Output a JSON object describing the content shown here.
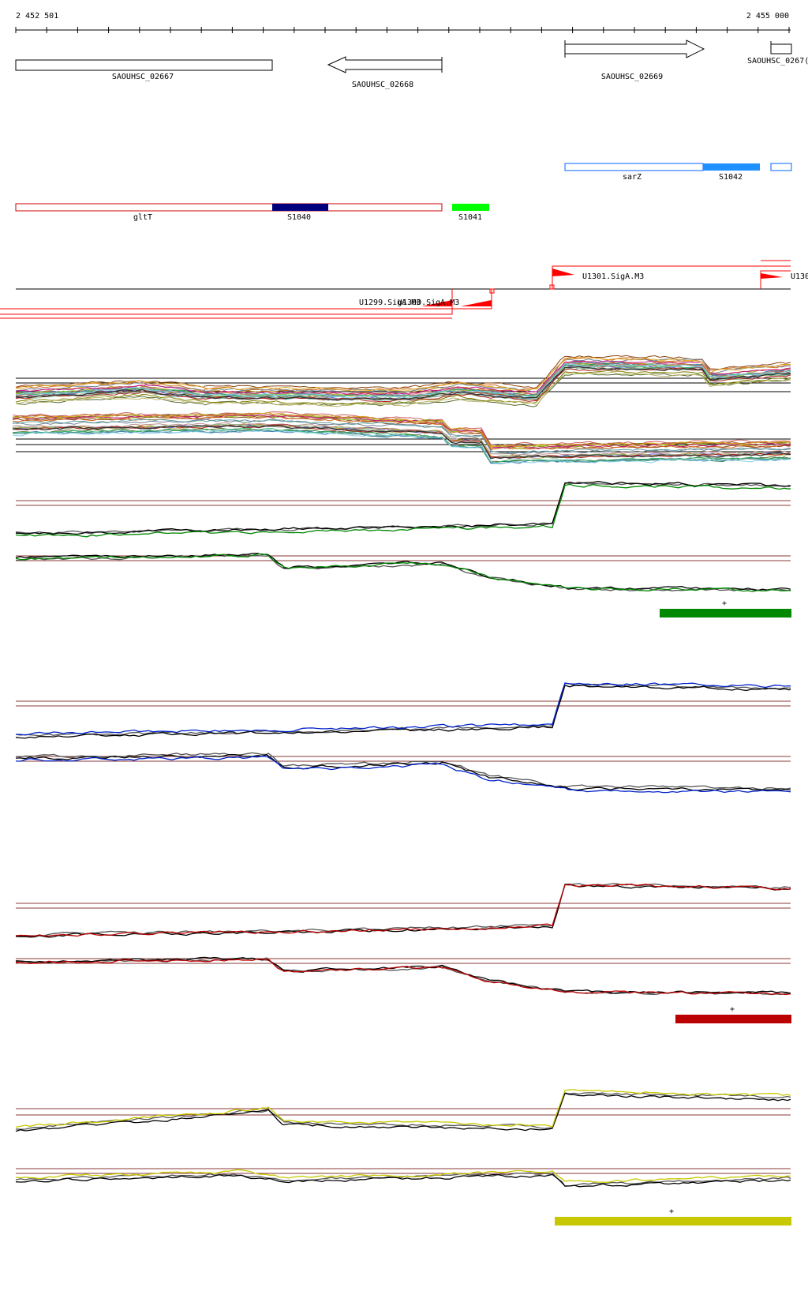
{
  "axis": {
    "start_label": "2 452 501",
    "end_label": "2 455 000",
    "start": 2452501,
    "end": 2455000
  },
  "genes": [
    {
      "id": "SAOUHSC_02667",
      "label": "SAOUHSC_02667",
      "start": 2452501,
      "end": 2453327,
      "strand": "none"
    },
    {
      "id": "SAOUHSC_02668",
      "label": "SAOUHSC_02668",
      "start": 2453559,
      "end": 2453875,
      "strand": "-"
    },
    {
      "id": "SAOUHSC_02669",
      "label": "SAOUHSC_02669",
      "start": 2454276,
      "end": 2454725,
      "strand": "+"
    },
    {
      "id": "SAOUHSC_02670",
      "label": "SAOUHSC_0267(",
      "start": 2454933,
      "end": 2455000,
      "strand": "none"
    }
  ],
  "annotations": [
    {
      "label": "sarZ",
      "kind": "outline",
      "color": "#0066ff",
      "start": 2454276,
      "end": 2454725
    },
    {
      "label": "S1042",
      "kind": "filled",
      "color": "#1e90ff",
      "start": 2454725,
      "end": 2454906
    },
    {
      "label": "",
      "kind": "outline",
      "color": "#0066ff",
      "start": 2454938,
      "end": 2455000
    },
    {
      "label": "gltT",
      "kind": "outline",
      "color": "#cc0000",
      "start": 2452501,
      "end": 2453875
    },
    {
      "label": "S1040",
      "kind": "filled",
      "color": "#00007f",
      "start": 2453327,
      "end": 2453509
    },
    {
      "label": "S1041",
      "kind": "filled",
      "color": "#00ff00",
      "start": 2453907,
      "end": 2454025
    }
  ],
  "promoters": {
    "labels": [
      "U1301.SigA.M3",
      "U130",
      "U1299.SigA.M3",
      "U1300.SigA.M3"
    ]
  },
  "conditions": [
    {
      "name": "green",
      "color": "#008800",
      "bar": {
        "start": 2454573,
        "end": 2455000,
        "marker": "+"
      }
    },
    {
      "name": "blue",
      "color": "#0022cc",
      "bar": null
    },
    {
      "name": "red",
      "color": "#bb0000",
      "bar": {
        "start": 2454623,
        "end": 2455000,
        "marker": "+"
      }
    },
    {
      "name": "yellow",
      "color": "#c8c800",
      "bar": {
        "start": 2454236,
        "end": 2455000,
        "marker": "+"
      }
    }
  ],
  "colors": {
    "gene_outline": "#000000",
    "promoter": "#ff0000",
    "threshold": "#8b3a3a"
  }
}
